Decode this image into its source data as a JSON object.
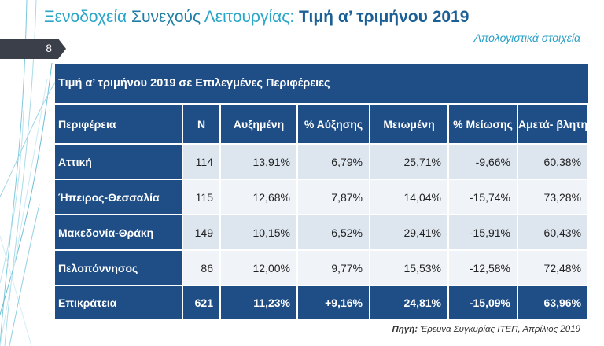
{
  "title": {
    "part1": "Ξενοδοχεία ",
    "part2": "Συνεχούς ",
    "part3": "Λειτουργίας: ",
    "part4": "Τιμή α’ τριμήνου 2019"
  },
  "subtitle": "Απολογιστικά στοιχεία",
  "page_number": "8",
  "table": {
    "caption": "Τιμή α’ τριμήνου 2019 σε Επιλεγμένες Περιφέρειες",
    "headers": [
      "Περιφέρεια",
      "Ν",
      "Αυξημένη",
      "% Αύξησης",
      "Μειωμένη",
      "% Μείωσης",
      "Αμετά- βλητη"
    ],
    "rows": [
      [
        "Αττική",
        "114",
        "13,91%",
        "6,79%",
        "25,71%",
        "-9,66%",
        "60,38%"
      ],
      [
        "Ήπειρος-Θεσσαλία",
        "115",
        "12,68%",
        "7,87%",
        "14,04%",
        "-15,74%",
        "73,28%"
      ],
      [
        "Μακεδονία-Θράκη",
        "149",
        "10,15%",
        "6,52%",
        "29,41%",
        "-15,91%",
        "60,43%"
      ],
      [
        "Πελοπόννησος",
        "86",
        "12,00%",
        "9,77%",
        "15,53%",
        "-12,58%",
        "72,48%"
      ]
    ],
    "total": [
      "Επικράτεια",
      "621",
      "11,23%",
      "+9,16%",
      "24,81%",
      "-15,09%",
      "63,96%"
    ]
  },
  "source": {
    "label": "Πηγή:",
    "text": " Έρευνα Συγκυρίας ΙΤΕΠ, Απρίλιος 2019"
  },
  "colors": {
    "table_header": "#1f4e87",
    "row_odd": "#dde5ef",
    "row_even": "#f0f3f8",
    "title_accent": "#29a6c9",
    "title_bold": "#1a5f96"
  }
}
